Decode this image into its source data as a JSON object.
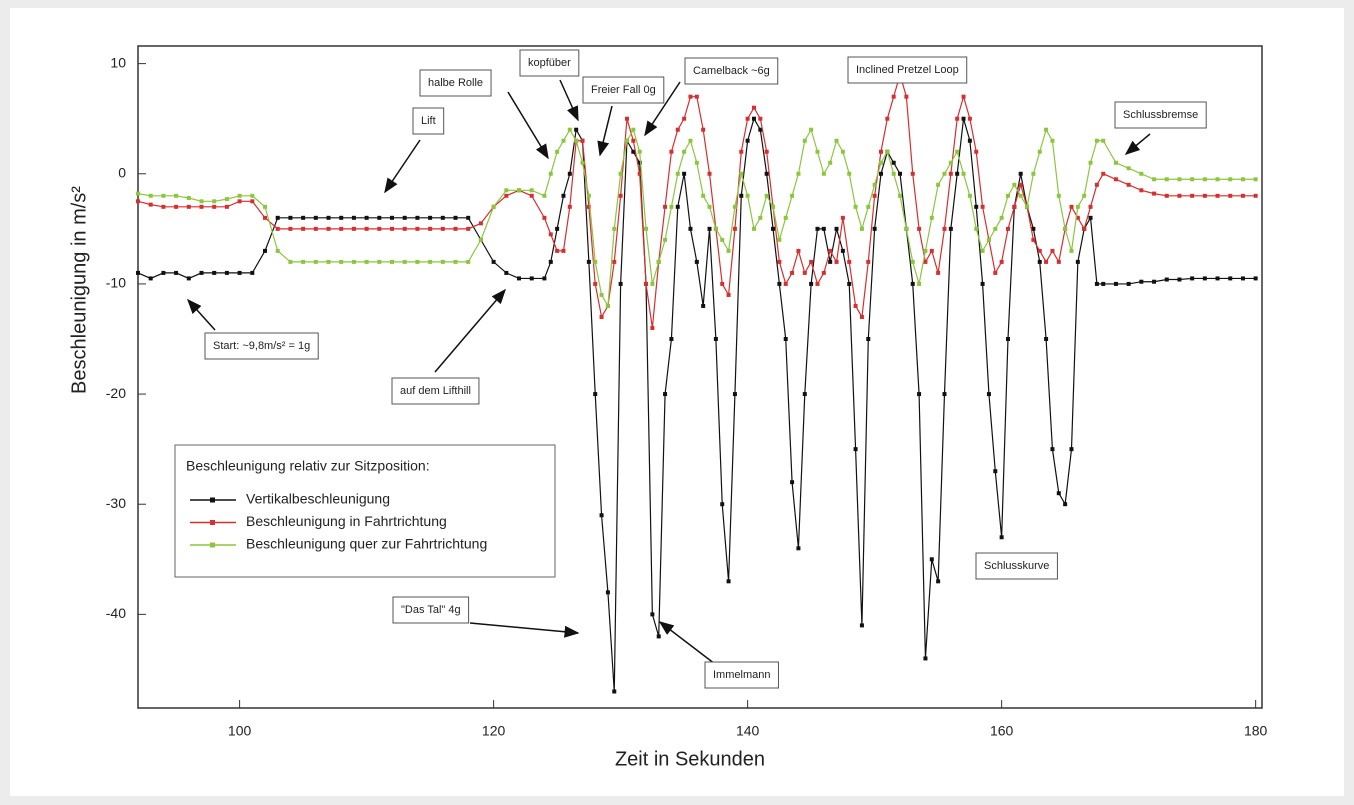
{
  "chart_data": {
    "type": "line",
    "x_label": "Zeit in Sekunden",
    "y_label": "Beschleunigung in m/s²",
    "legend_title": "Beschleunigung relativ zur Sitzposition:",
    "xlim": [
      92,
      180.5
    ],
    "xticks": [
      100,
      120,
      140,
      160,
      180
    ],
    "ylim": [
      -48.5,
      11.6
    ],
    "yticks": [
      10,
      0,
      -10,
      -20,
      -30,
      -40
    ],
    "annotations": [
      "Lift",
      "halbe Rolle",
      "kopfüber",
      "Freier Fall 0g",
      "Camelback ~6g",
      "Inclined Pretzel Loop",
      "Schlussbremse",
      "Start: ~9,8m/s² = 1g",
      "auf dem Lifthill",
      "\"Das Tal\" 4g",
      "Immelmann",
      "Schlusskurve"
    ],
    "x": [
      92,
      93,
      94,
      95,
      96,
      97,
      98,
      99,
      100,
      101,
      102,
      103,
      104,
      105,
      106,
      107,
      108,
      109,
      110,
      111,
      112,
      113,
      114,
      115,
      116,
      117,
      118,
      119,
      120,
      121,
      122,
      123,
      124,
      124.5,
      125,
      125.5,
      126,
      126.5,
      127,
      127.5,
      128,
      128.5,
      129,
      129.5,
      130,
      130.5,
      131,
      131.5,
      132,
      132.5,
      133,
      133.5,
      134,
      134.5,
      135,
      135.5,
      136,
      136.5,
      137,
      137.5,
      138,
      138.5,
      139,
      139.5,
      140,
      140.5,
      141,
      141.5,
      142,
      142.5,
      143,
      143.5,
      144,
      144.5,
      145,
      145.5,
      146,
      146.5,
      147,
      147.5,
      148,
      148.5,
      149,
      149.5,
      150,
      150.5,
      151,
      151.5,
      152,
      152.5,
      153,
      153.5,
      154,
      154.5,
      155,
      155.5,
      156,
      156.5,
      157,
      157.5,
      158,
      158.5,
      159,
      159.5,
      160,
      160.5,
      161,
      161.5,
      162,
      162.5,
      163,
      163.5,
      164,
      164.5,
      165,
      165.5,
      166,
      166.5,
      167,
      167.5,
      168,
      169,
      170,
      171,
      172,
      173,
      174,
      175,
      176,
      177,
      178,
      179,
      180
    ],
    "series": [
      {
        "name": "Vertikalbeschleunigung",
        "color": "#111111",
        "values": [
          -9,
          -9.5,
          -9,
          -9,
          -9.5,
          -9,
          -9,
          -9,
          -9,
          -9,
          -7,
          -4,
          -4,
          -4,
          -4,
          -4,
          -4,
          -4,
          -4,
          -4,
          -4,
          -4,
          -4,
          -4,
          -4,
          -4,
          -4,
          -6,
          -8,
          -9,
          -9.5,
          -9.5,
          -9.5,
          -8,
          -5,
          -2,
          0,
          4,
          3,
          -8,
          -20,
          -31,
          -38,
          -47,
          -10,
          3,
          2,
          1,
          -10,
          -40,
          -42,
          -20,
          -15,
          -3,
          0,
          -5,
          -8,
          -12,
          -5,
          -15,
          -30,
          -37,
          -20,
          -2,
          3,
          5,
          4,
          0,
          -5,
          -10,
          -15,
          -28,
          -34,
          -20,
          -10,
          -5,
          -5,
          -8,
          -5,
          -7,
          -10,
          -25,
          -41,
          -15,
          -5,
          0,
          2,
          1,
          0,
          -5,
          -10,
          -20,
          -44,
          -35,
          -37,
          -20,
          -5,
          0,
          5,
          3,
          -3,
          -10,
          -20,
          -27,
          -33,
          -15,
          -3,
          0,
          -3,
          -5,
          -8,
          -15,
          -25,
          -29,
          -30,
          -25,
          -8,
          -5,
          -4,
          -10,
          -10,
          -10,
          -10,
          -9.8,
          -9.8,
          -9.6,
          -9.6,
          -9.5,
          -9.5,
          -9.5,
          -9.5,
          -9.5,
          -9.5
        ]
      },
      {
        "name": "Beschleunigung in Fahrtrichtung",
        "color": "#d62f2f",
        "values": [
          -2.5,
          -2.8,
          -3,
          -3,
          -3,
          -3,
          -3,
          -3,
          -2.5,
          -2.5,
          -4,
          -5,
          -5,
          -5,
          -5,
          -5,
          -5,
          -5,
          -5,
          -5,
          -5,
          -5,
          -5,
          -5,
          -5,
          -5,
          -5,
          -4.5,
          -3,
          -2,
          -1.5,
          -2,
          -4,
          -5.5,
          -7,
          -7,
          -3,
          3,
          3,
          -3,
          -10,
          -13,
          -12,
          -8,
          -2,
          5,
          3,
          0,
          -10,
          -14,
          -8,
          -3,
          2,
          4,
          5,
          7,
          7,
          4,
          0,
          -5,
          -10,
          -11,
          -5,
          2,
          5,
          6,
          5,
          2,
          -3,
          -8,
          -10,
          -9,
          -7,
          -9,
          -8,
          -10,
          -9,
          -7,
          -8,
          -4,
          -8,
          -12,
          -13,
          -8,
          -2,
          2,
          5,
          7,
          9,
          7,
          0,
          -5,
          -8,
          -7,
          -9,
          -5,
          0,
          5,
          7,
          5,
          2,
          -3,
          -6,
          -9,
          -8,
          -5,
          -3,
          -1,
          -3,
          -6,
          -7,
          -8,
          -7,
          -8,
          -5,
          -3,
          -4,
          -5,
          -3,
          -1,
          0,
          -0.5,
          -1,
          -1.5,
          -1.8,
          -2,
          -2,
          -2,
          -2,
          -2,
          -2,
          -2,
          -2
        ]
      },
      {
        "name": "Beschleunigung quer zur Fahrtrichtung",
        "color": "#8cc63f",
        "values": [
          -1.8,
          -2,
          -2,
          -2,
          -2.2,
          -2.5,
          -2.5,
          -2.3,
          -2,
          -2,
          -3,
          -7,
          -8,
          -8,
          -8,
          -8,
          -8,
          -8,
          -8,
          -8,
          -8,
          -8,
          -8,
          -8,
          -8,
          -8,
          -8,
          -6,
          -3,
          -1.5,
          -1.5,
          -1.5,
          -2,
          0,
          2,
          3,
          4,
          3,
          1,
          -2,
          -8,
          -11,
          -12,
          -5,
          0,
          3,
          4,
          2,
          -5,
          -10,
          -8,
          -6,
          -3,
          0,
          2,
          3,
          1,
          -2,
          -3,
          -5,
          -6,
          -7,
          -3,
          0,
          -2,
          -5,
          -4,
          -2,
          -3,
          -6,
          -4,
          -2,
          0,
          3,
          4,
          2,
          0,
          1,
          3,
          2,
          0,
          -3,
          -5,
          -3,
          -1,
          1,
          2,
          0,
          -2,
          -5,
          -8,
          -10,
          -7,
          -4,
          -1,
          0,
          1,
          2,
          0,
          -2,
          -5,
          -7,
          -6,
          -5,
          -4,
          -2,
          -1,
          -2,
          -3,
          0,
          2,
          4,
          3,
          -2,
          -5,
          -7,
          -3,
          -2,
          1,
          3,
          3,
          1,
          0.5,
          0,
          -0.5,
          -0.5,
          -0.5,
          -0.5,
          -0.5,
          -0.5,
          -0.5,
          -0.5,
          -0.5
        ]
      }
    ]
  }
}
